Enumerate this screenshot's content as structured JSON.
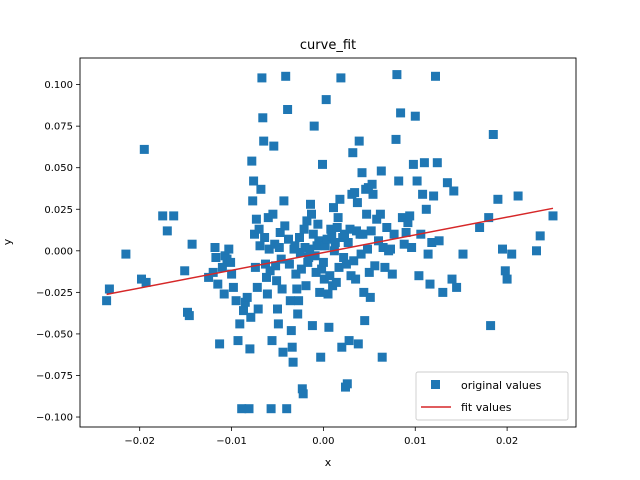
{
  "chart_data": {
    "type": "scatter",
    "title": "curve_fit",
    "xlabel": "x",
    "ylabel": "y",
    "xlim": [
      -0.0265,
      0.0275
    ],
    "ylim": [
      -0.106,
      0.116
    ],
    "x_ticks": [
      -0.02,
      -0.01,
      0.0,
      0.01,
      0.02
    ],
    "x_tick_labels": [
      "−0.02",
      "−0.01",
      "0.00",
      "0.01",
      "0.02"
    ],
    "y_ticks": [
      -0.1,
      -0.075,
      -0.05,
      -0.025,
      0.0,
      0.025,
      0.05,
      0.075,
      0.1
    ],
    "y_tick_labels": [
      "−0.100",
      "−0.075",
      "−0.050",
      "−0.025",
      "0.000",
      "0.025",
      "0.050",
      "0.075",
      "0.100"
    ],
    "grid": false,
    "legend_position": "lower-right",
    "series": [
      {
        "name": "original values",
        "kind": "scatter",
        "marker": "square",
        "color": "#1f77b4",
        "points": [
          [
            -0.0236,
            -0.03
          ],
          [
            -0.0233,
            -0.023
          ],
          [
            -0.0215,
            -0.002
          ],
          [
            -0.0198,
            -0.017
          ],
          [
            -0.0195,
            0.061
          ],
          [
            -0.0193,
            -0.019
          ],
          [
            -0.0175,
            0.021
          ],
          [
            -0.017,
            0.012
          ],
          [
            -0.0163,
            0.021
          ],
          [
            -0.0151,
            -0.012
          ],
          [
            -0.0148,
            -0.037
          ],
          [
            -0.0146,
            -0.039
          ],
          [
            -0.0143,
            0.004
          ],
          [
            -0.0125,
            -0.016
          ],
          [
            -0.012,
            -0.013
          ],
          [
            -0.0118,
            0.002
          ],
          [
            -0.0117,
            -0.004
          ],
          [
            -0.0115,
            -0.02
          ],
          [
            -0.0113,
            -0.056
          ],
          [
            -0.011,
            -0.01
          ],
          [
            -0.0108,
            -0.026
          ],
          [
            -0.0107,
            -0.003
          ],
          [
            -0.0105,
            -0.005
          ],
          [
            -0.0103,
            0.001
          ],
          [
            -0.0101,
            -0.007
          ],
          [
            -0.01,
            -0.014
          ],
          [
            -0.0098,
            -0.022
          ],
          [
            -0.0095,
            -0.03
          ],
          [
            -0.0093,
            -0.054
          ],
          [
            -0.0091,
            -0.044
          ],
          [
            -0.0089,
            -0.095
          ],
          [
            -0.0087,
            -0.036
          ],
          [
            -0.0085,
            -0.031
          ],
          [
            -0.0083,
            -0.028
          ],
          [
            -0.0081,
            -0.095
          ],
          [
            -0.008,
            -0.059
          ],
          [
            -0.0079,
            -0.04
          ],
          [
            -0.0078,
            0.054
          ],
          [
            -0.0077,
            0.03
          ],
          [
            -0.0076,
            0.042
          ],
          [
            -0.0075,
            0.01
          ],
          [
            -0.0074,
            -0.01
          ],
          [
            -0.0073,
            0.019
          ],
          [
            -0.0072,
            -0.022
          ],
          [
            -0.0071,
            -0.035
          ],
          [
            -0.007,
            0.013
          ],
          [
            -0.0069,
            0.003
          ],
          [
            -0.0068,
            0.037
          ],
          [
            -0.0067,
            0.104
          ],
          [
            -0.0066,
            0.08
          ],
          [
            -0.0065,
            0.066
          ],
          [
            -0.0064,
            0.008
          ],
          [
            -0.0063,
            -0.008
          ],
          [
            -0.0062,
            -0.016
          ],
          [
            -0.0061,
            -0.026
          ],
          [
            -0.006,
            0.02
          ],
          [
            -0.0059,
            0.001
          ],
          [
            -0.0058,
            -0.012
          ],
          [
            -0.0057,
            -0.095
          ],
          [
            -0.0056,
            -0.054
          ],
          [
            -0.0055,
            0.022
          ],
          [
            -0.0054,
            0.063
          ],
          [
            -0.0053,
            0.004
          ],
          [
            -0.0052,
            -0.009
          ],
          [
            -0.0051,
            -0.018
          ],
          [
            -0.005,
            -0.035
          ],
          [
            -0.0049,
            -0.044
          ],
          [
            -0.0048,
            0.002
          ],
          [
            -0.0047,
            0.011
          ],
          [
            -0.0046,
            -0.005
          ],
          [
            -0.0045,
            -0.023
          ],
          [
            -0.0044,
            -0.061
          ],
          [
            -0.0043,
            0.03
          ],
          [
            -0.0042,
            0.015
          ],
          [
            -0.0041,
            0.105
          ],
          [
            -0.004,
            -0.095
          ],
          [
            -0.0039,
            0.085
          ],
          [
            -0.0038,
            0.007
          ],
          [
            -0.0037,
            -0.008
          ],
          [
            -0.0036,
            -0.03
          ],
          [
            -0.0035,
            -0.048
          ],
          [
            -0.0034,
            -0.058
          ],
          [
            -0.0033,
            -0.067
          ],
          [
            -0.0032,
            0.001
          ],
          [
            -0.0031,
            0.003
          ],
          [
            -0.003,
            -0.014
          ],
          [
            -0.0029,
            -0.023
          ],
          [
            -0.0028,
            -0.038
          ],
          [
            -0.0027,
            -0.03
          ],
          [
            -0.0026,
            0.008
          ],
          [
            -0.0025,
            -0.001
          ],
          [
            -0.0024,
            -0.011
          ],
          [
            -0.0023,
            -0.083
          ],
          [
            -0.0022,
            -0.086
          ],
          [
            -0.0021,
            0.013
          ],
          [
            -0.002,
            0.002
          ],
          [
            -0.0019,
            -0.021
          ],
          [
            -0.0018,
            0.018
          ],
          [
            -0.0017,
            -0.007
          ],
          [
            -0.0016,
            -0.004
          ],
          [
            -0.0015,
            0.001
          ],
          [
            -0.0014,
            0.028
          ],
          [
            -0.0013,
            0.022
          ],
          [
            -0.0012,
            -0.045
          ],
          [
            -0.0011,
            0.01
          ],
          [
            -0.001,
            0.075
          ],
          [
            -0.0009,
            -0.003
          ],
          [
            -0.0008,
            -0.013
          ],
          [
            -0.0007,
            0.003
          ],
          [
            -0.0006,
            0.016
          ],
          [
            -0.0005,
            0.006
          ],
          [
            -0.0004,
            -0.025
          ],
          [
            -0.0003,
            -0.064
          ],
          [
            -0.0002,
            -0.011
          ],
          [
            -0.0001,
            0.052
          ],
          [
            0.0,
            -0.007
          ],
          [
            0.0001,
            -0.017
          ],
          [
            0.0002,
            0.003
          ],
          [
            0.0003,
            0.091
          ],
          [
            0.0004,
            0.007
          ],
          [
            0.0005,
            -0.026
          ],
          [
            0.0006,
            -0.046
          ],
          [
            0.0007,
            -0.015
          ],
          [
            0.0008,
            0.013
          ],
          [
            0.0009,
            0.009
          ],
          [
            0.001,
            -0.021
          ],
          [
            0.0011,
            0.026
          ],
          [
            0.0012,
            0.0
          ],
          [
            0.0013,
            0.005
          ],
          [
            0.0014,
            -0.019
          ],
          [
            0.0015,
            0.014
          ],
          [
            0.0016,
            0.02
          ],
          [
            0.0017,
            -0.01
          ],
          [
            0.0018,
            0.031
          ],
          [
            0.0019,
            0.104
          ],
          [
            0.002,
            -0.058
          ],
          [
            0.0021,
            0.008
          ],
          [
            0.0022,
            -0.004
          ],
          [
            0.0023,
            0.01
          ],
          [
            0.0024,
            -0.082
          ],
          [
            0.0025,
            -0.008
          ],
          [
            0.0026,
            -0.08
          ],
          [
            0.0027,
            0.005
          ],
          [
            0.0028,
            -0.054
          ],
          [
            0.0029,
            0.013
          ],
          [
            0.003,
            -0.015
          ],
          [
            0.0031,
            0.034
          ],
          [
            0.0032,
            0.059
          ],
          [
            0.0033,
            -0.006
          ],
          [
            0.0034,
            0.035
          ],
          [
            0.0035,
            -0.017
          ],
          [
            0.0036,
            0.012
          ],
          [
            0.0037,
            0.029
          ],
          [
            0.0038,
            -0.056
          ],
          [
            0.0039,
            0.066
          ],
          [
            0.004,
            0.01
          ],
          [
            0.0041,
            -0.002
          ],
          [
            0.0042,
            0.047
          ],
          [
            0.0043,
            0.01
          ],
          [
            0.0044,
            -0.025
          ],
          [
            0.0045,
            -0.042
          ],
          [
            0.0046,
            0.037
          ],
          [
            0.0047,
            0.022
          ],
          [
            0.0048,
            0.001
          ],
          [
            0.0049,
            0.038
          ],
          [
            0.005,
            -0.013
          ],
          [
            0.0051,
            -0.028
          ],
          [
            0.0052,
            0.012
          ],
          [
            0.0053,
            0.04
          ],
          [
            0.0054,
            0.034
          ],
          [
            0.0056,
            -0.009
          ],
          [
            0.0058,
            0.019
          ],
          [
            0.006,
            0.006
          ],
          [
            0.0062,
            0.022
          ],
          [
            0.0063,
            0.048
          ],
          [
            0.0064,
            -0.064
          ],
          [
            0.0065,
            0.002
          ],
          [
            0.0067,
            -0.01
          ],
          [
            0.0069,
            0.014
          ],
          [
            0.0071,
            0.0
          ],
          [
            0.0073,
            0.001
          ],
          [
            0.0075,
            -0.014
          ],
          [
            0.0077,
            0.01
          ],
          [
            0.0079,
            0.067
          ],
          [
            0.008,
            0.106
          ],
          [
            0.0082,
            0.042
          ],
          [
            0.0084,
            0.083
          ],
          [
            0.0086,
            0.02
          ],
          [
            0.0088,
            0.004
          ],
          [
            0.009,
            0.011
          ],
          [
            0.0092,
            0.017
          ],
          [
            0.0094,
            0.021
          ],
          [
            0.0096,
            0.002
          ],
          [
            0.0098,
            0.052
          ],
          [
            0.01,
            0.081
          ],
          [
            0.0102,
            0.042
          ],
          [
            0.0104,
            -0.015
          ],
          [
            0.0106,
            0.01
          ],
          [
            0.0108,
            0.034
          ],
          [
            0.011,
            0.053
          ],
          [
            0.0112,
            0.025
          ],
          [
            0.0114,
            -0.002
          ],
          [
            0.0116,
            -0.02
          ],
          [
            0.0118,
            0.005
          ],
          [
            0.012,
            0.033
          ],
          [
            0.0122,
            0.105
          ],
          [
            0.0124,
            0.053
          ],
          [
            0.0126,
            0.006
          ],
          [
            0.013,
            -0.025
          ],
          [
            0.0135,
            0.041
          ],
          [
            0.014,
            -0.017
          ],
          [
            0.0142,
            0.036
          ],
          [
            0.0145,
            -0.022
          ],
          [
            0.0152,
            -0.002
          ],
          [
            0.017,
            0.014
          ],
          [
            0.018,
            0.02
          ],
          [
            0.0182,
            -0.045
          ],
          [
            0.0185,
            0.07
          ],
          [
            0.019,
            0.031
          ],
          [
            0.0195,
            0.001
          ],
          [
            0.0198,
            -0.012
          ],
          [
            0.02,
            -0.017
          ],
          [
            0.0205,
            -0.002
          ],
          [
            0.0212,
            0.033
          ],
          [
            0.0232,
            0.0
          ],
          [
            0.0236,
            0.009
          ],
          [
            0.025,
            0.021
          ]
        ]
      },
      {
        "name": "fit values",
        "kind": "line",
        "color": "#d62728",
        "points": [
          [
            -0.0236,
            -0.0262
          ],
          [
            0.025,
            0.0256
          ]
        ]
      }
    ]
  }
}
